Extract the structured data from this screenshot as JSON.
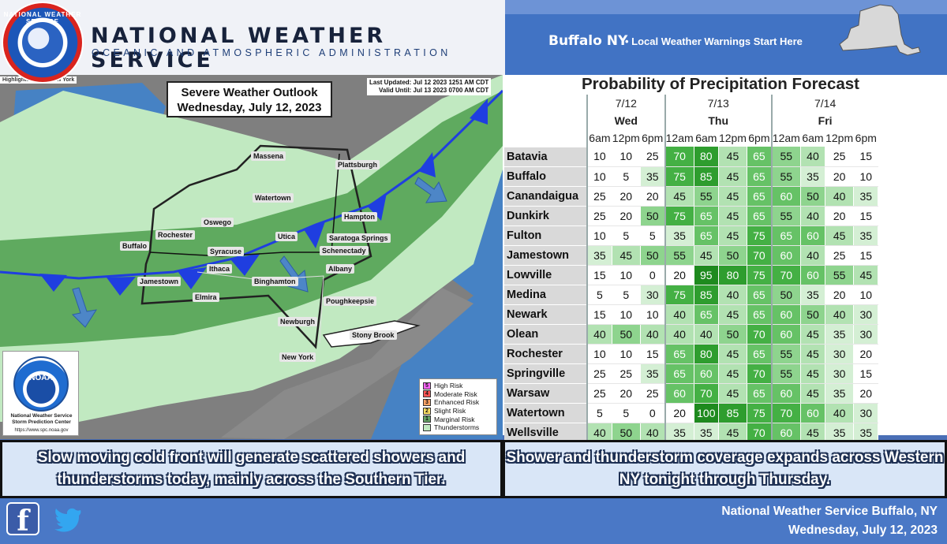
{
  "header": {
    "title": "NATIONAL WEATHER SERVICE",
    "subtitle": "OCEANIC AND ATMOSPHERIC ADMINISTRATION",
    "office": "Buffalo NY",
    "office_tagline": "Local Weather Warnings Start Here",
    "logo_ring_text": "NATIONAL WEATHER SERVICE"
  },
  "map": {
    "highlighted_area": "Highlighted Area: New York",
    "outlook_title_line1": "Severe Weather Outlook",
    "outlook_title_line2": "Wednesday, July 12, 2023",
    "last_updated": "Last Updated: Jul 12 2023 1251 AM CDT",
    "valid_until": "Valid Until: Jul 13 2023 0700 AM CDT",
    "cities": {
      "massena": "Massena",
      "plattsburgh": "Plattsburgh",
      "watertown": "Watertown",
      "oswego": "Oswego",
      "rochester": "Rochester",
      "buffalo": "Buffalo",
      "syracuse": "Syracuse",
      "utica": "Utica",
      "saratoga": "Saratoga Springs",
      "schenectady": "Schenectady",
      "hampton": "Hampton",
      "albany": "Albany",
      "ithaca": "Ithaca",
      "binghamton": "Binghamton",
      "jamestown": "Jamestown",
      "elmira": "Elmira",
      "poughkeepsie": "Poughkeepsie",
      "newburgh": "Newburgh",
      "stony_brook": "Stony Brook",
      "new_york": "New York"
    },
    "legend": [
      {
        "num": "5",
        "label": "High Risk",
        "color": "#ff66ff"
      },
      {
        "num": "4",
        "label": "Moderate Risk",
        "color": "#ff5555"
      },
      {
        "num": "3",
        "label": "Enhanced Risk",
        "color": "#ffa366"
      },
      {
        "num": "2",
        "label": "Slight Risk",
        "color": "#ffe066"
      },
      {
        "num": "1",
        "label": "Marginal Risk",
        "color": "#66a366"
      },
      {
        "num": "",
        "label": "Thunderstorms",
        "color": "#c1e9c1"
      }
    ],
    "noaa_logo_text": "NOAA",
    "spc_name_line1": "National Weather Service",
    "spc_name_line2": "Storm Prediction Center",
    "spc_url": "https://www.spc.noaa.gov"
  },
  "pop": {
    "title": "Probability of Precipitation Forecast",
    "dates": [
      {
        "date": "7/12",
        "day": "Wed"
      },
      {
        "date": "7/13",
        "day": "Thu"
      },
      {
        "date": "7/14",
        "day": "Fri"
      }
    ],
    "times": [
      "6am",
      "12pm",
      "6pm",
      "12am",
      "6am",
      "12pm",
      "6pm",
      "12am",
      "6am",
      "12pm",
      "6pm"
    ],
    "rows": [
      {
        "name": "Batavia",
        "values": [
          10,
          10,
          25,
          70,
          80,
          45,
          65,
          55,
          40,
          25,
          15
        ]
      },
      {
        "name": "Buffalo",
        "values": [
          10,
          5,
          35,
          75,
          85,
          45,
          65,
          55,
          35,
          20,
          10
        ]
      },
      {
        "name": "Canandaigua",
        "values": [
          25,
          20,
          20,
          45,
          55,
          45,
          65,
          60,
          50,
          40,
          35
        ]
      },
      {
        "name": "Dunkirk",
        "values": [
          25,
          20,
          50,
          75,
          65,
          45,
          65,
          55,
          40,
          20,
          15
        ]
      },
      {
        "name": "Fulton",
        "values": [
          10,
          5,
          5,
          35,
          65,
          45,
          75,
          65,
          60,
          45,
          35
        ]
      },
      {
        "name": "Jamestown",
        "values": [
          35,
          45,
          50,
          55,
          45,
          50,
          70,
          60,
          40,
          25,
          15
        ]
      },
      {
        "name": "Lowville",
        "values": [
          15,
          10,
          0,
          20,
          95,
          80,
          75,
          70,
          60,
          55,
          45
        ]
      },
      {
        "name": "Medina",
        "values": [
          5,
          5,
          30,
          75,
          85,
          40,
          65,
          50,
          35,
          20,
          10
        ]
      },
      {
        "name": "Newark",
        "values": [
          15,
          10,
          10,
          40,
          65,
          45,
          65,
          60,
          50,
          40,
          30
        ]
      },
      {
        "name": "Olean",
        "values": [
          40,
          50,
          40,
          40,
          40,
          50,
          70,
          60,
          45,
          35,
          30
        ]
      },
      {
        "name": "Rochester",
        "values": [
          10,
          10,
          15,
          65,
          80,
          45,
          65,
          55,
          45,
          30,
          20
        ]
      },
      {
        "name": "Springville",
        "values": [
          25,
          25,
          35,
          65,
          60,
          45,
          70,
          55,
          45,
          30,
          15
        ]
      },
      {
        "name": "Warsaw",
        "values": [
          25,
          20,
          25,
          60,
          70,
          45,
          65,
          60,
          45,
          35,
          20
        ]
      },
      {
        "name": "Watertown",
        "values": [
          5,
          5,
          0,
          20,
          100,
          85,
          75,
          70,
          60,
          40,
          30
        ]
      },
      {
        "name": "Wellsville",
        "values": [
          40,
          50,
          40,
          35,
          35,
          45,
          70,
          60,
          45,
          35,
          35
        ]
      }
    ]
  },
  "captions": {
    "left": "Slow moving cold front will generate scattered showers and thunderstorms today, mainly across the Southern Tier.",
    "right": "Shower and thunderstorm coverage expands across Western NY tonight through Thursday."
  },
  "footer": {
    "office": "National Weather Service Buffalo, NY",
    "date": "Wednesday, July 12, 2023",
    "facebook_glyph": "f"
  },
  "icons": [
    "nws-logo-icon",
    "ny-state-icon",
    "noaa-logo-icon",
    "facebook-icon",
    "twitter-icon"
  ],
  "colors": {
    "brand_blue": "#4173c4",
    "front_blue": "#1f3ee0",
    "land_gray": "#7c7c7c"
  }
}
